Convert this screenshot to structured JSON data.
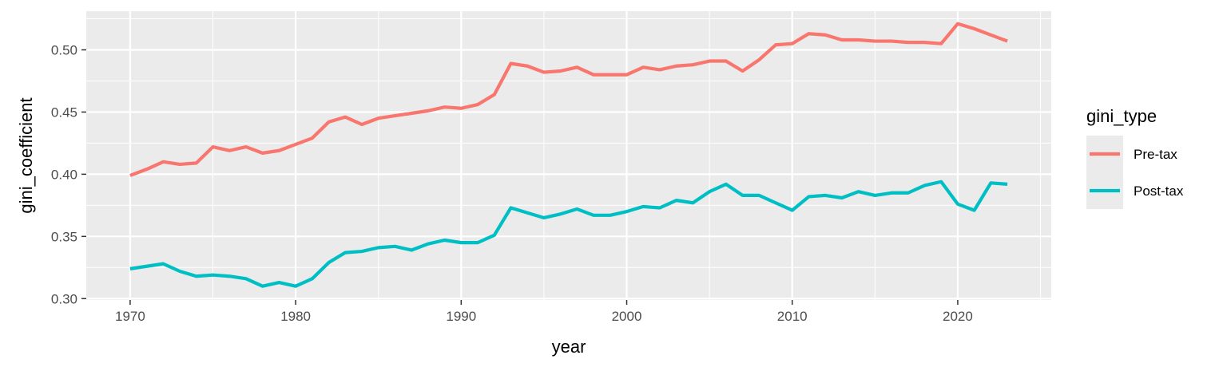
{
  "chart_data": {
    "type": "line",
    "xlabel": "year",
    "ylabel": "gini_coefficient",
    "xlim": [
      1967.35,
      2025.65
    ],
    "ylim": [
      0.2989,
      0.5311
    ],
    "x_ticks": [
      1970,
      1980,
      1990,
      2000,
      2010,
      2020
    ],
    "x_tick_labels": [
      "1970",
      "1980",
      "1990",
      "2000",
      "2010",
      "2020"
    ],
    "y_ticks": [
      0.3,
      0.35,
      0.4,
      0.45,
      0.5
    ],
    "y_tick_labels": [
      "0.30",
      "0.35",
      "0.40",
      "0.45",
      "0.50"
    ],
    "grid": true,
    "legend": {
      "title": "gini_type",
      "placement": "right"
    },
    "x": [
      1970,
      1971,
      1972,
      1973,
      1974,
      1975,
      1976,
      1977,
      1978,
      1979,
      1980,
      1981,
      1982,
      1983,
      1984,
      1985,
      1986,
      1987,
      1988,
      1989,
      1990,
      1991,
      1992,
      1993,
      1994,
      1995,
      1996,
      1997,
      1998,
      1999,
      2000,
      2001,
      2002,
      2003,
      2004,
      2005,
      2006,
      2007,
      2008,
      2009,
      2010,
      2011,
      2012,
      2013,
      2014,
      2015,
      2016,
      2017,
      2018,
      2019,
      2020,
      2021,
      2022,
      2023
    ],
    "series": [
      {
        "name": "Pre-tax",
        "color": "#F8766D",
        "values": [
          0.399,
          0.404,
          0.41,
          0.408,
          0.409,
          0.422,
          0.419,
          0.422,
          0.417,
          0.419,
          0.424,
          0.429,
          0.442,
          0.446,
          0.44,
          0.445,
          0.447,
          0.449,
          0.451,
          0.454,
          0.453,
          0.456,
          0.464,
          0.489,
          0.487,
          0.482,
          0.483,
          0.486,
          0.48,
          0.48,
          0.48,
          0.486,
          0.484,
          0.487,
          0.488,
          0.491,
          0.491,
          0.483,
          0.492,
          0.504,
          0.505,
          0.513,
          0.512,
          0.508,
          0.508,
          0.507,
          0.507,
          0.506,
          0.506,
          0.505,
          0.521,
          0.517,
          0.512,
          0.507
        ]
      },
      {
        "name": "Post-tax",
        "color": "#00BFC4",
        "values": [
          0.324,
          0.326,
          0.328,
          0.322,
          0.318,
          0.319,
          0.318,
          0.316,
          0.31,
          0.313,
          0.31,
          0.316,
          0.329,
          0.337,
          0.338,
          0.341,
          0.342,
          0.339,
          0.344,
          0.347,
          0.345,
          0.345,
          0.351,
          0.373,
          0.369,
          0.365,
          0.368,
          0.372,
          0.367,
          0.367,
          0.37,
          0.374,
          0.373,
          0.379,
          0.377,
          0.386,
          0.392,
          0.383,
          0.383,
          0.377,
          0.371,
          0.382,
          0.383,
          0.381,
          0.386,
          0.383,
          0.385,
          0.385,
          0.391,
          0.394,
          0.376,
          0.371,
          0.393,
          0.392
        ]
      }
    ]
  }
}
